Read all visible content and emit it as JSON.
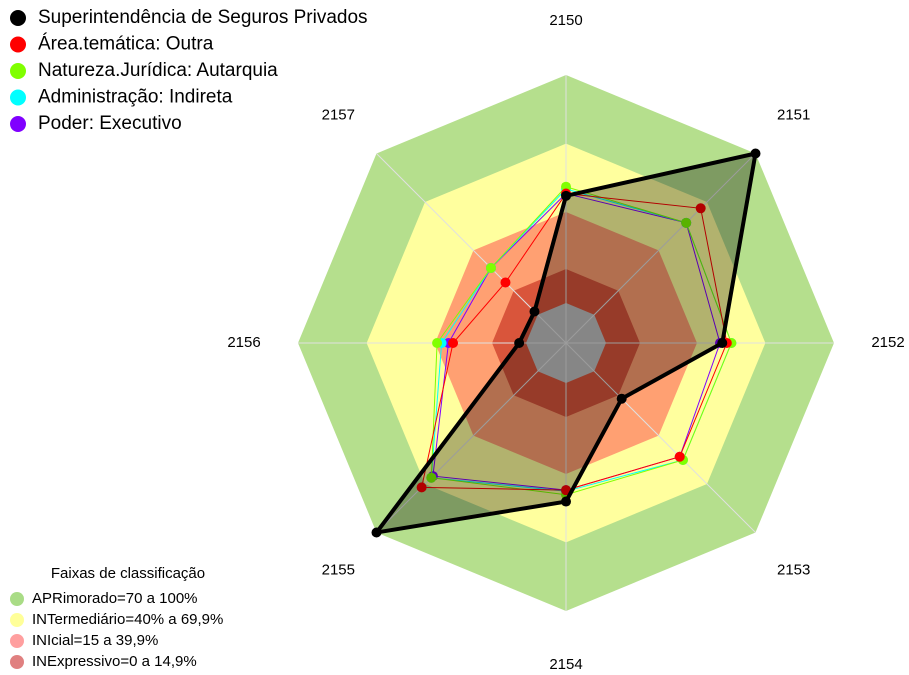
{
  "chart_data": {
    "type": "radar",
    "categories": [
      "2150",
      "2151",
      "2152",
      "2153",
      "2154",
      "2155",
      "2156",
      "2157"
    ],
    "rlim": [
      0,
      100
    ],
    "series": [
      {
        "name": "Superintendência de Seguros Privados",
        "color": "#000000",
        "values": [
          47,
          100,
          51,
          17,
          52,
          100,
          3,
          2
        ]
      },
      {
        "name": "Área.temática: Outra",
        "color": "#ff0000",
        "values": [
          48,
          66,
          53,
          53,
          47,
          72,
          32,
          20
        ]
      },
      {
        "name": "Natureza.Jurídica: Autarquia",
        "color": "#80ff00",
        "values": [
          51,
          57,
          55,
          55,
          49,
          66,
          39,
          29
        ]
      },
      {
        "name": "Administração: Indireta",
        "color": "#00ffff",
        "values": [
          50,
          57,
          55,
          55,
          47.5,
          66,
          37,
          29
        ]
      },
      {
        "name": "Poder: Executivo",
        "color": "#8000ff",
        "values": [
          48,
          57,
          50,
          53,
          47,
          65,
          34,
          29
        ]
      }
    ],
    "bands_title": "Faixas de classificação",
    "bands": [
      {
        "label": "APRimorado=70 a 100%",
        "range": [
          70,
          100
        ],
        "color": "#b5df8d",
        "legend_color": "#a9dc86"
      },
      {
        "label": "INTermediário=40% a 69,9%",
        "range": [
          40,
          69.9
        ],
        "color": "#ffff9e",
        "legend_color": "#ffff99"
      },
      {
        "label": "INIcial=15 a 39,9%",
        "range": [
          15,
          39.9
        ],
        "color": "#ffa072",
        "legend_color": "#ff9f9f"
      },
      {
        "label": "INExpressivo=0 a 14,9%",
        "range": [
          0,
          14.9
        ],
        "color": "#d9553b",
        "legend_color": "#e08080"
      }
    ]
  }
}
